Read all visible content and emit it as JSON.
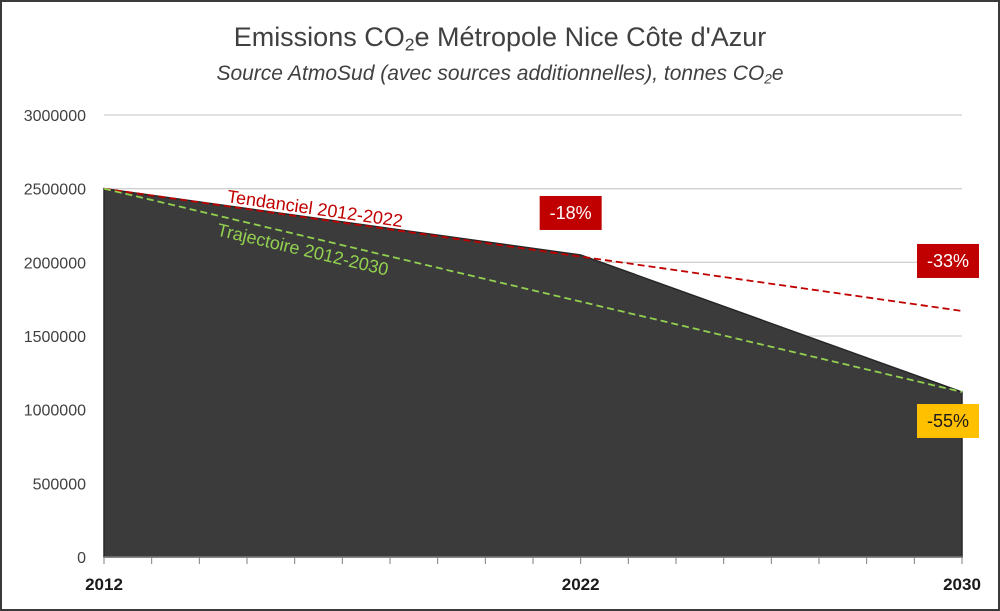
{
  "chart_data": {
    "type": "area",
    "title": {
      "main": "Emissions CO",
      "sub": "2",
      "rest": "e Métropole Nice Côte d'Azur"
    },
    "subtitle": {
      "main": "Source AtmoSud (avec sources additionnelles), tonnes CO",
      "sub": "2",
      "rest": "e"
    },
    "ylim": [
      0,
      3000000
    ],
    "yticks": [
      "0",
      "500000",
      "1000000",
      "1500000",
      "2000000",
      "2500000",
      "3000000"
    ],
    "xlim": [
      2012,
      2030
    ],
    "xticks": [
      "2012",
      "2022",
      "2030"
    ],
    "grid": true,
    "series": [
      {
        "name": "Emissions",
        "kind": "area",
        "color": "#3b3b3b",
        "x": [
          2012,
          2022,
          2030
        ],
        "values": [
          2500000,
          2050000,
          1120000
        ]
      },
      {
        "name": "Tendanciel 2012-2022",
        "kind": "dashed-line",
        "color": "#c00000",
        "x": [
          2012,
          2030
        ],
        "values": [
          2500000,
          1670000
        ]
      },
      {
        "name": "Trajectoire 2012-2030",
        "kind": "dashed-line",
        "color": "#92d050",
        "x": [
          2012,
          2030
        ],
        "values": [
          2500000,
          1120000
        ]
      }
    ],
    "annotations": [
      {
        "text": "-18%",
        "x": 2022,
        "y": 2050000,
        "bg": "#c00000",
        "fg": "#ffffff"
      },
      {
        "text": "-33%",
        "x": 2030,
        "y": 1670000,
        "bg": "#c00000",
        "fg": "#ffffff"
      },
      {
        "text": "-55%",
        "x": 2030,
        "y": 1120000,
        "bg": "#ffc000",
        "fg": "#1a1a1a"
      }
    ]
  }
}
